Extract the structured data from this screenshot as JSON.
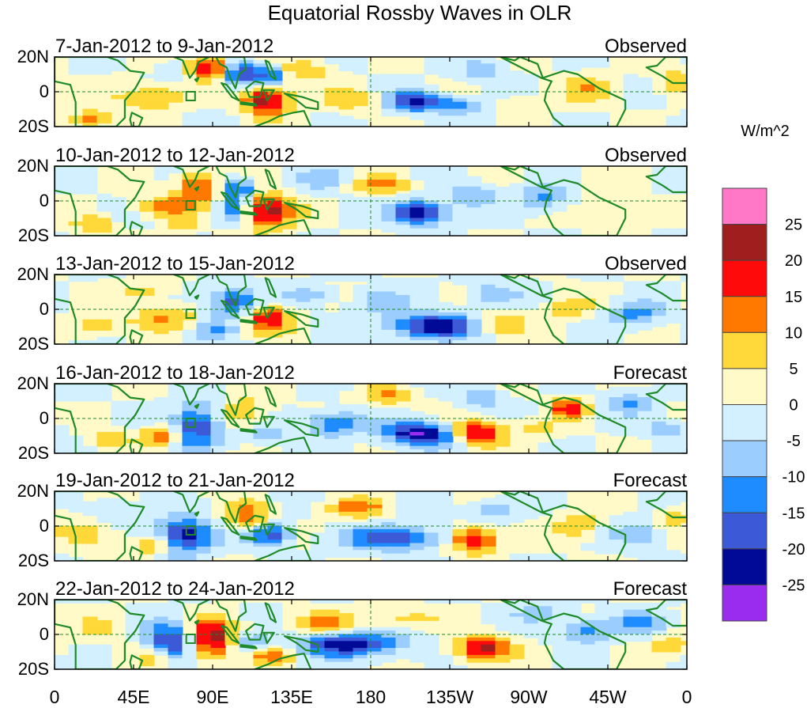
{
  "chart_data": {
    "type": "heatmap",
    "title": "Equatorial Rossby Waves in OLR",
    "units": "W/m^2",
    "x_ticks": [
      "0",
      "45E",
      "90E",
      "135E",
      "180",
      "135W",
      "90W",
      "45W",
      "0"
    ],
    "y_ticks": [
      "20N",
      "0",
      "20S"
    ],
    "lon_range": [
      0,
      360
    ],
    "lat_range": [
      -20,
      20
    ],
    "colorbar": {
      "labels": [
        "25",
        "20",
        "15",
        "10",
        "5",
        "0",
        "-5",
        "-10",
        "-15",
        "-20",
        "-25"
      ],
      "levels": [
        -25,
        -20,
        -15,
        -10,
        -5,
        0,
        5,
        10,
        15,
        20,
        25
      ],
      "colors": [
        "#9a2cf0",
        "#000a96",
        "#3c5ad7",
        "#1e8cff",
        "#9ccdff",
        "#d2f0ff",
        "#fffac8",
        "#ffd839",
        "#ff7800",
        "#ff0a0a",
        "#a01e1e",
        "#ff78c8"
      ]
    },
    "panels": [
      {
        "period": "7-Jan-2012 to 9-Jan-2012",
        "status": "Observed",
        "blobs": [
          [
            86,
            14,
            9,
            5,
            22
          ],
          [
            118,
            -5,
            9,
            6,
            25
          ],
          [
            102,
            10,
            7,
            5,
            -24
          ],
          [
            119,
            9,
            5,
            4,
            -20
          ],
          [
            52,
            -3,
            14,
            5,
            12
          ],
          [
            165,
            -5,
            10,
            5,
            8
          ],
          [
            202,
            -6,
            10,
            4,
            -23
          ],
          [
            242,
            12,
            9,
            4,
            -10
          ],
          [
            226,
            -8,
            9,
            4,
            -12
          ],
          [
            300,
            2,
            10,
            6,
            8
          ],
          [
            350,
            6,
            8,
            6,
            9
          ],
          [
            18,
            -16,
            8,
            4,
            14
          ],
          [
            140,
            12,
            10,
            5,
            8
          ],
          [
            270,
            -6,
            12,
            4,
            5
          ],
          [
            63,
            12,
            6,
            4,
            -6
          ]
        ]
      },
      {
        "period": "10-Jan-2012 to 12-Jan-2012",
        "status": "Observed",
        "blobs": [
          [
            78,
            8,
            8,
            6,
            18
          ],
          [
            117,
            -6,
            11,
            7,
            24
          ],
          [
            102,
            6,
            7,
            5,
            -18
          ],
          [
            100,
            -6,
            6,
            5,
            -14
          ],
          [
            60,
            -3,
            12,
            4,
            12
          ],
          [
            185,
            9,
            11,
            4,
            10
          ],
          [
            205,
            -7,
            11,
            5,
            -25
          ],
          [
            235,
            4,
            9,
            5,
            -10
          ],
          [
            275,
            1,
            10,
            5,
            -12
          ],
          [
            320,
            -5,
            14,
            5,
            6
          ],
          [
            20,
            -14,
            8,
            4,
            10
          ],
          [
            150,
            12,
            8,
            5,
            -8
          ],
          [
            70,
            -14,
            7,
            4,
            8
          ]
        ]
      },
      {
        "period": "13-Jan-2012 to 15-Jan-2012",
        "status": "Observed",
        "blobs": [
          [
            118,
            -5,
            9,
            6,
            20
          ],
          [
            100,
            4,
            10,
            6,
            -20
          ],
          [
            213,
            -10,
            16,
            5,
            -26
          ],
          [
            60,
            -5,
            14,
            5,
            10
          ],
          [
            180,
            4,
            10,
            5,
            -10
          ],
          [
            250,
            -8,
            10,
            5,
            10
          ],
          [
            245,
            8,
            10,
            5,
            -10
          ],
          [
            142,
            8,
            9,
            4,
            -8
          ],
          [
            290,
            0,
            10,
            5,
            8
          ],
          [
            328,
            -3,
            11,
            5,
            -12
          ],
          [
            50,
            10,
            10,
            4,
            8
          ],
          [
            22,
            -10,
            10,
            4,
            10
          ],
          [
            86,
            -12,
            8,
            4,
            -10
          ]
        ]
      },
      {
        "period": "16-Jan-2012 to 18-Jan-2012",
        "status": "Forecast",
        "blobs": [
          [
            78,
            -4,
            9,
            9,
            -20
          ],
          [
            205,
            -9,
            14,
            5,
            -26
          ],
          [
            238,
            -8,
            10,
            5,
            22
          ],
          [
            105,
            4,
            10,
            6,
            10
          ],
          [
            155,
            -3,
            12,
            5,
            -15
          ],
          [
            185,
            13,
            10,
            4,
            10
          ],
          [
            240,
            12,
            9,
            4,
            -10
          ],
          [
            290,
            6,
            7,
            4,
            18
          ],
          [
            325,
            10,
            8,
            5,
            -10
          ],
          [
            57,
            -10,
            8,
            4,
            14
          ],
          [
            28,
            -12,
            8,
            4,
            8
          ],
          [
            118,
            -10,
            8,
            4,
            -8
          ],
          [
            270,
            -6,
            10,
            4,
            6
          ],
          [
            345,
            -6,
            10,
            4,
            -8
          ]
        ]
      },
      {
        "period": "19-Jan-2012 to 21-Jan-2012",
        "status": "Forecast",
        "blobs": [
          [
            70,
            -6,
            11,
            7,
            -26
          ],
          [
            108,
            5,
            9,
            6,
            14
          ],
          [
            120,
            -5,
            9,
            5,
            -20
          ],
          [
            190,
            -7,
            18,
            5,
            -20
          ],
          [
            236,
            -8,
            9,
            5,
            22
          ],
          [
            170,
            10,
            12,
            4,
            12
          ],
          [
            245,
            10,
            9,
            4,
            -10
          ],
          [
            295,
            0,
            8,
            6,
            10
          ],
          [
            330,
            -5,
            10,
            5,
            -10
          ],
          [
            55,
            -11,
            9,
            4,
            14
          ],
          [
            18,
            -5,
            10,
            5,
            10
          ],
          [
            350,
            5,
            8,
            5,
            8
          ],
          [
            30,
            10,
            8,
            5,
            -6
          ]
        ]
      },
      {
        "period": "22-Jan-2012 to 24-Jan-2012",
        "status": "Forecast",
        "blobs": [
          [
            85,
            -3,
            10,
            8,
            26
          ],
          [
            65,
            -5,
            10,
            8,
            -24
          ],
          [
            165,
            -6,
            22,
            5,
            -22
          ],
          [
            240,
            -8,
            11,
            5,
            22
          ],
          [
            150,
            6,
            14,
            5,
            10
          ],
          [
            120,
            -12,
            9,
            4,
            14
          ],
          [
            55,
            -14,
            8,
            4,
            12
          ],
          [
            300,
            2,
            10,
            5,
            -12
          ],
          [
            330,
            6,
            10,
            5,
            -10
          ],
          [
            195,
            9,
            14,
            4,
            8
          ],
          [
            22,
            3,
            10,
            5,
            6
          ],
          [
            275,
            12,
            10,
            4,
            -8
          ],
          [
            350,
            -6,
            8,
            4,
            10
          ],
          [
            110,
            -6,
            8,
            4,
            -12
          ]
        ]
      }
    ]
  }
}
